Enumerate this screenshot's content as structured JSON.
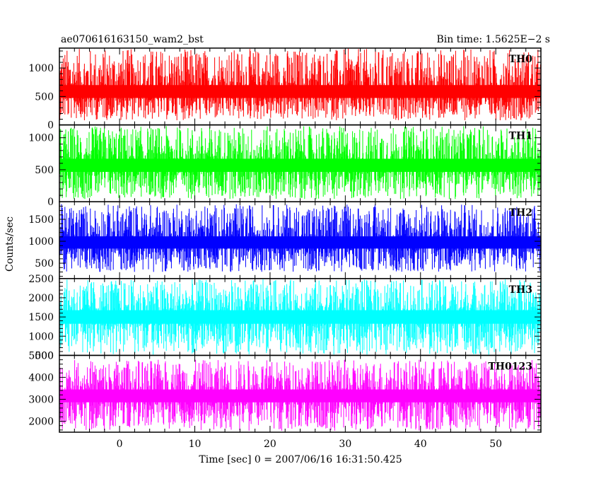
{
  "chart_data": {
    "type": "line",
    "title": "ae070616163150_wam2_bst",
    "subtitle": "Bin time: 1.5625E−2 s",
    "xlabel": "Time [sec] 0 = 2007/06/16 16:31:50.425",
    "ylabel": "Counts/sec",
    "xlim": [
      -8,
      56
    ],
    "xticks": [
      0,
      10,
      20,
      30,
      40,
      50
    ],
    "x_start": -8,
    "x_end": 56,
    "series": [
      {
        "name": "TH0",
        "color": "#ff0000",
        "ylim": [
          0,
          1350
        ],
        "yticks": [
          0,
          500,
          1000
        ],
        "ytick_labels": [
          "0",
          "500",
          "1000"
        ],
        "mean": 560,
        "low": 80,
        "high": 1340
      },
      {
        "name": "TH1",
        "color": "#00ff00",
        "ylim": [
          0,
          1200
        ],
        "yticks": [
          0,
          500,
          1000
        ],
        "ytick_labels": [
          "0",
          "500",
          "1000"
        ],
        "mean": 560,
        "low": 40,
        "high": 1180
      },
      {
        "name": "TH2",
        "color": "#0000ff",
        "ylim": [
          150,
          1900
        ],
        "yticks": [
          500,
          1000,
          1500
        ],
        "ytick_labels": [
          "500",
          "1000",
          "1500"
        ],
        "mean": 950,
        "low": 300,
        "high": 1850
      },
      {
        "name": "TH3",
        "color": "#00ffff",
        "ylim": [
          500,
          2500
        ],
        "yticks": [
          500,
          1000,
          1500,
          2000,
          2500
        ],
        "ytick_labels": [
          "500",
          "1000",
          "1500",
          "2000",
          "2500"
        ],
        "mean": 1500,
        "low": 520,
        "high": 2480
      },
      {
        "name": "TH0123",
        "color": "#ff00ff",
        "ylim": [
          1500,
          5000
        ],
        "yticks": [
          2000,
          3000,
          4000,
          5000
        ],
        "ytick_labels": [
          "2000",
          "3000",
          "4000",
          "5000"
        ],
        "mean": 3150,
        "low": 1550,
        "high": 4800
      }
    ]
  }
}
